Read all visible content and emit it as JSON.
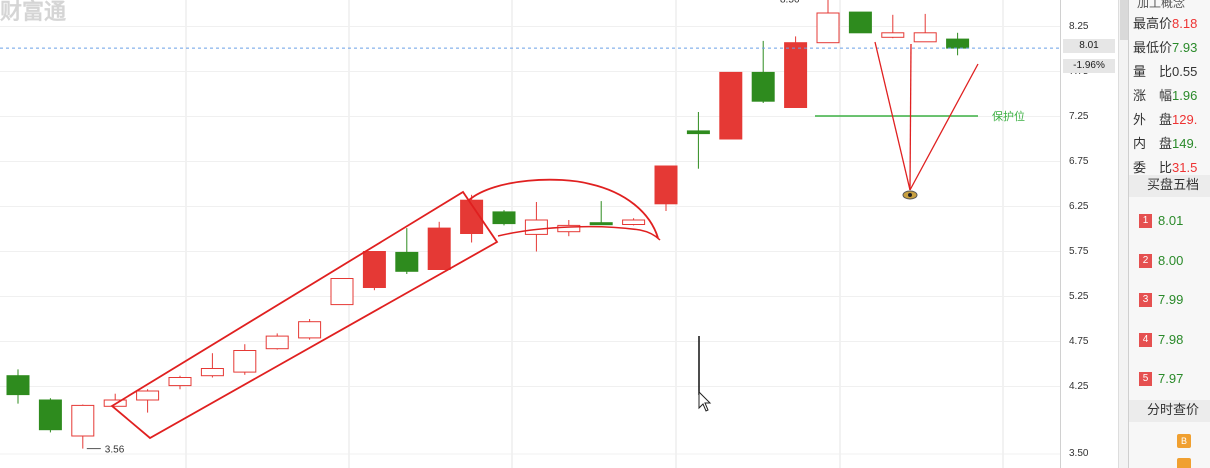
{
  "app": {
    "watermark": "财富通"
  },
  "chart": {
    "y_ticks": [
      "8.25",
      "7.75",
      "7.25",
      "6.75",
      "6.25",
      "5.75",
      "5.25",
      "4.75",
      "4.25",
      "3.50"
    ],
    "current_price": "8.01",
    "change_pct": "-1.96%",
    "high_label": "8.56",
    "low_label": "3.56",
    "support_label": "保护位",
    "colors": {
      "up": "#e53935",
      "down": "#2e8b1e",
      "annotation": "#e02020",
      "support": "#3cb043",
      "grid": "#e6e6e6",
      "dash": "#6aa0e8"
    }
  },
  "panel": {
    "title": "加工概念",
    "stats": [
      {
        "label": "最高价",
        "value": "8.18",
        "tone": "red"
      },
      {
        "label": "最低价",
        "value": "7.93",
        "tone": "green"
      },
      {
        "label": "量　比",
        "value": "0.55",
        "tone": "dark"
      },
      {
        "label": "涨　幅",
        "value": "1.96",
        "tone": "green"
      },
      {
        "label": "外　盘",
        "value": "129.",
        "tone": "red"
      },
      {
        "label": "内　盘",
        "value": "149.",
        "tone": "green"
      },
      {
        "label": "委　比",
        "value": "31.5",
        "tone": "red"
      }
    ],
    "buy_header": "买盘五档",
    "buy_levels": [
      {
        "num": "1",
        "price": "8.01"
      },
      {
        "num": "2",
        "price": "8.00"
      },
      {
        "num": "3",
        "price": "7.99"
      },
      {
        "num": "4",
        "price": "7.98"
      },
      {
        "num": "5",
        "price": "7.97"
      }
    ],
    "timeshare_header": "分时查价",
    "bottom_icon": "B"
  },
  "candles": [
    {
      "o": 4.37,
      "c": 4.16,
      "h": 4.44,
      "l": 4.06,
      "dir": "down"
    },
    {
      "o": 4.1,
      "c": 3.77,
      "h": 4.12,
      "l": 3.74,
      "dir": "down"
    },
    {
      "o": 3.7,
      "c": 4.04,
      "h": 4.05,
      "l": 3.56,
      "dir": "up"
    },
    {
      "o": 4.03,
      "c": 4.1,
      "h": 4.17,
      "l": 4.03,
      "dir": "up"
    },
    {
      "o": 4.1,
      "c": 4.2,
      "h": 4.22,
      "l": 3.96,
      "dir": "up"
    },
    {
      "o": 4.26,
      "c": 4.35,
      "h": 4.37,
      "l": 4.22,
      "dir": "up"
    },
    {
      "o": 4.37,
      "c": 4.45,
      "h": 4.62,
      "l": 4.35,
      "dir": "up"
    },
    {
      "o": 4.41,
      "c": 4.65,
      "h": 4.72,
      "l": 4.38,
      "dir": "up"
    },
    {
      "o": 4.67,
      "c": 4.81,
      "h": 4.84,
      "l": 4.66,
      "dir": "up"
    },
    {
      "o": 4.79,
      "c": 4.97,
      "h": 5.0,
      "l": 4.77,
      "dir": "up"
    },
    {
      "o": 5.16,
      "c": 5.45,
      "h": 5.45,
      "l": 5.16,
      "dir": "up"
    },
    {
      "o": 5.35,
      "c": 5.75,
      "h": 5.75,
      "l": 5.32,
      "dir": "up"
    },
    {
      "o": 5.74,
      "c": 5.53,
      "h": 6.01,
      "l": 5.5,
      "dir": "down"
    },
    {
      "o": 5.55,
      "c": 6.01,
      "h": 6.08,
      "l": 5.55,
      "dir": "up"
    },
    {
      "o": 5.95,
      "c": 6.32,
      "h": 6.38,
      "l": 5.85,
      "dir": "up"
    },
    {
      "o": 6.19,
      "c": 6.06,
      "h": 6.21,
      "l": 6.04,
      "dir": "down"
    },
    {
      "o": 5.94,
      "c": 6.1,
      "h": 6.3,
      "l": 5.75,
      "dir": "up"
    },
    {
      "o": 5.97,
      "c": 6.04,
      "h": 6.1,
      "l": 5.92,
      "dir": "up"
    },
    {
      "o": 6.05,
      "c": 6.07,
      "h": 6.31,
      "l": 6.05,
      "dir": "down"
    },
    {
      "o": 6.05,
      "c": 6.1,
      "h": 6.12,
      "l": 6.04,
      "dir": "up"
    },
    {
      "o": 6.28,
      "c": 6.7,
      "h": 6.7,
      "l": 6.2,
      "dir": "up"
    },
    {
      "o": 7.06,
      "c": 7.09,
      "h": 7.3,
      "l": 6.67,
      "dir": "down"
    },
    {
      "o": 7.0,
      "c": 7.74,
      "h": 7.74,
      "l": 7.0,
      "dir": "up"
    },
    {
      "o": 7.74,
      "c": 7.42,
      "h": 8.09,
      "l": 7.4,
      "dir": "down"
    },
    {
      "o": 7.35,
      "c": 8.07,
      "h": 8.14,
      "l": 7.35,
      "dir": "up"
    },
    {
      "o": 8.07,
      "c": 8.4,
      "h": 8.56,
      "l": 8.07,
      "dir": "up"
    },
    {
      "o": 8.41,
      "c": 8.18,
      "h": 8.41,
      "l": 8.18,
      "dir": "down"
    },
    {
      "o": 8.13,
      "c": 8.18,
      "h": 8.38,
      "l": 8.12,
      "dir": "up"
    },
    {
      "o": 8.08,
      "c": 8.18,
      "h": 8.39,
      "l": 8.08,
      "dir": "up"
    },
    {
      "o": 8.11,
      "c": 8.01,
      "h": 8.18,
      "l": 7.93,
      "dir": "down"
    }
  ]
}
